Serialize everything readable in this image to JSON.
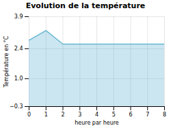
{
  "chart_data": {
    "type": "area",
    "title": "Evolution de la température",
    "x_label": "heure par heure",
    "y_label": "Température en °C",
    "x": [
      0,
      1,
      2,
      3,
      4,
      5,
      6,
      7,
      8
    ],
    "values": [
      2.8,
      3.25,
      2.62,
      2.62,
      2.62,
      2.62,
      2.62,
      2.62,
      2.62
    ],
    "color": "#6ab8d4",
    "xlim": [
      0,
      8
    ],
    "ylim": [
      -0.3,
      3.9
    ],
    "xticks": [
      0,
      1,
      2,
      3,
      4,
      5,
      6,
      7,
      8
    ],
    "yticks": [
      -0.3,
      {
        "value": 1.0,
        "label": "1.0"
      },
      2.4,
      3.9
    ],
    "grid": true
  }
}
